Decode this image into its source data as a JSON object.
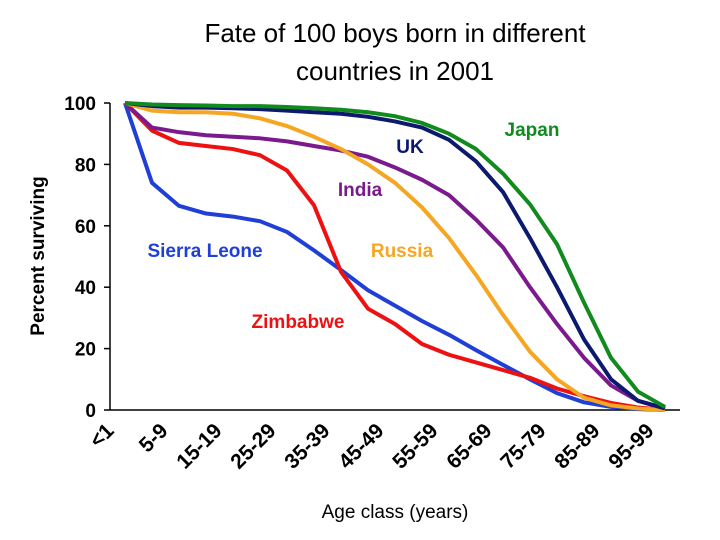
{
  "chart_data": {
    "type": "line",
    "title": [
      "Fate of 100 boys born in different",
      "countries in 2001"
    ],
    "x_label": "Age class (years)",
    "y_label": "Percent surviving",
    "categories": [
      "<1",
      null,
      "5-9",
      null,
      "15-19",
      null,
      "25-29",
      null,
      "35-39",
      null,
      "45-49",
      null,
      "55-59",
      null,
      "65-69",
      null,
      "75-79",
      null,
      "85-89",
      null,
      "95-99"
    ],
    "ylim": [
      0,
      100
    ],
    "yticks": [
      0,
      20,
      40,
      60,
      80,
      100
    ],
    "series": [
      {
        "name": "Sierra Leone",
        "color": "#1f3fd6",
        "values": [
          100,
          74,
          66.5,
          64,
          63,
          61.5,
          58,
          52,
          45.6,
          39,
          34,
          29,
          24.5,
          19.5,
          14.7,
          10,
          5.5,
          2.5,
          1,
          0.3,
          0
        ]
      },
      {
        "name": "Zimbabwe",
        "color": "#ee1111",
        "values": [
          100,
          91,
          87,
          86,
          85,
          83,
          78,
          66.7,
          45,
          33,
          28,
          21.5,
          18,
          15.5,
          13,
          10.5,
          7,
          4.5,
          2.3,
          0.8,
          0
        ]
      },
      {
        "name": "India",
        "color": "#7b1a8c",
        "values": [
          100,
          92,
          90.5,
          89.5,
          89,
          88.5,
          87.5,
          86,
          84.5,
          82.5,
          79,
          75,
          70,
          62,
          53,
          40,
          28,
          17,
          8,
          3,
          0.5
        ]
      },
      {
        "name": "Russia",
        "color": "#f5a623",
        "values": [
          100,
          97.5,
          97,
          97,
          96.5,
          95,
          92.5,
          89,
          85,
          80,
          74,
          66,
          56,
          44,
          31,
          19,
          10,
          4,
          1.5,
          0.5,
          0
        ]
      },
      {
        "name": "UK",
        "color": "#0b1a6e",
        "values": [
          100,
          99,
          98.5,
          98.5,
          98.3,
          98,
          97.5,
          97,
          96.5,
          95.5,
          94,
          92,
          88,
          81,
          71,
          56,
          40,
          23,
          10,
          3,
          0.5
        ]
      },
      {
        "name": "Japan",
        "color": "#118a1e",
        "values": [
          100,
          99.5,
          99.3,
          99.2,
          99,
          99,
          98.7,
          98.3,
          97.8,
          97,
          95.7,
          93.5,
          90,
          85,
          77,
          67,
          54,
          35,
          17,
          6,
          1
        ]
      }
    ]
  }
}
